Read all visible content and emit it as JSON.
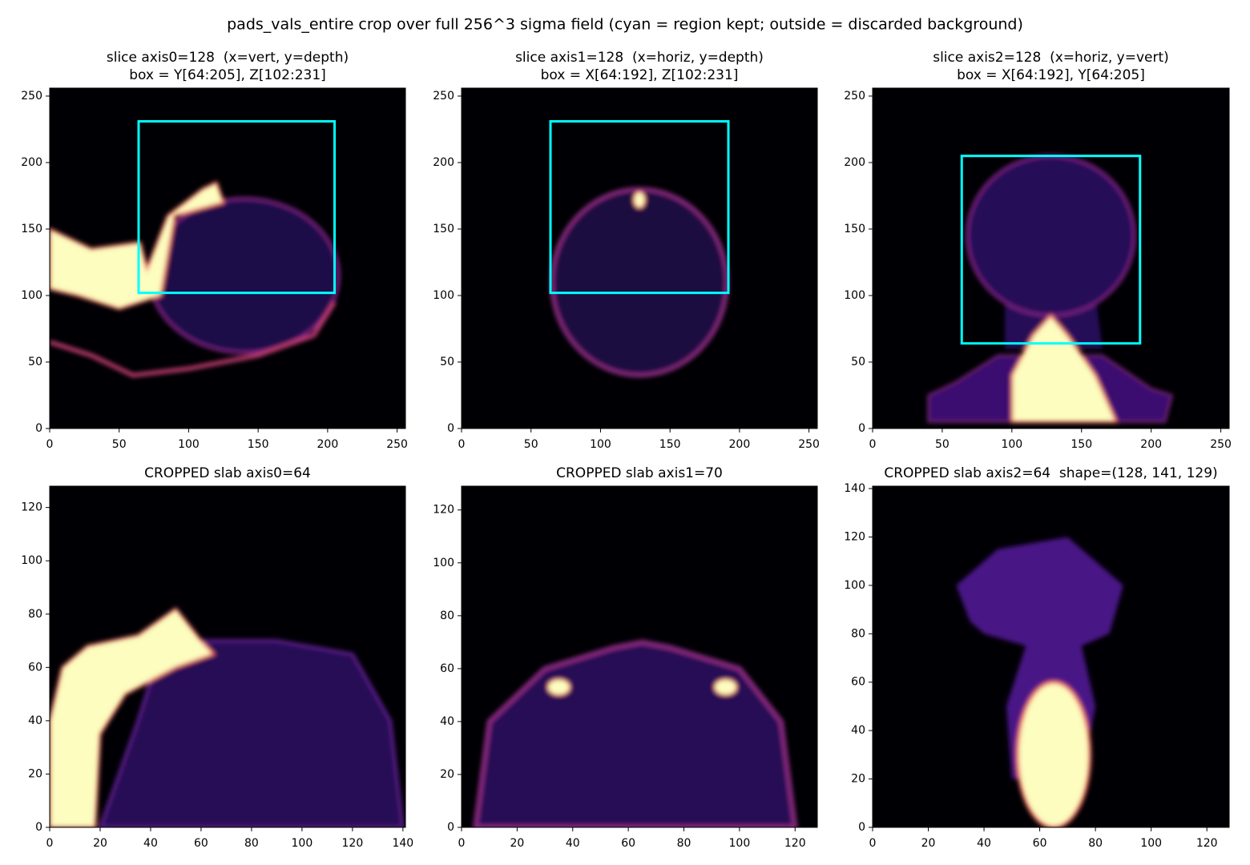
{
  "title": "pads_vals_entire crop over full 256^3 sigma field (cyan = region kept; outside = discarded background)",
  "chart_data": [
    {
      "type": "image",
      "title": "slice axis0=128  (x=vert, y=depth)",
      "subtitle": "box = Y[64:205], Z[102:231]",
      "xlim": [
        0,
        256
      ],
      "ylim": [
        0,
        256
      ],
      "xticks": [
        0,
        50,
        100,
        150,
        200,
        250
      ],
      "yticks": [
        0,
        50,
        100,
        150,
        200,
        250
      ],
      "box_x": [
        64,
        205
      ],
      "box_y": [
        102,
        231
      ],
      "box_color": "#00ffff"
    },
    {
      "type": "image",
      "title": "slice axis1=128  (x=horiz, y=depth)",
      "subtitle": "box = X[64:192], Z[102:231]",
      "xlim": [
        0,
        256
      ],
      "ylim": [
        0,
        256
      ],
      "xticks": [
        0,
        50,
        100,
        150,
        200,
        250
      ],
      "yticks": [
        0,
        50,
        100,
        150,
        200,
        250
      ],
      "box_x": [
        64,
        192
      ],
      "box_y": [
        102,
        231
      ],
      "box_color": "#00ffff"
    },
    {
      "type": "image",
      "title": "slice axis2=128  (x=horiz, y=vert)",
      "subtitle": "box = X[64:192], Y[64:205]",
      "xlim": [
        0,
        256
      ],
      "ylim": [
        0,
        256
      ],
      "xticks": [
        0,
        50,
        100,
        150,
        200,
        250
      ],
      "yticks": [
        0,
        50,
        100,
        150,
        200,
        250
      ],
      "box_x": [
        64,
        192
      ],
      "box_y": [
        64,
        205
      ],
      "box_color": "#00ffff"
    },
    {
      "type": "image",
      "title": "CROPPED slab axis0=64",
      "xlim": [
        0,
        141
      ],
      "ylim": [
        0,
        128
      ],
      "xticks": [
        0,
        20,
        40,
        60,
        80,
        100,
        120,
        140
      ],
      "yticks": [
        0,
        20,
        40,
        60,
        80,
        100,
        120
      ]
    },
    {
      "type": "image",
      "title": "CROPPED slab axis1=70",
      "xlim": [
        0,
        128
      ],
      "ylim": [
        0,
        129
      ],
      "xticks": [
        0,
        20,
        40,
        60,
        80,
        100,
        120
      ],
      "yticks": [
        0,
        20,
        40,
        60,
        80,
        100,
        120
      ]
    },
    {
      "type": "image",
      "title": "CROPPED slab axis2=64  shape=(128, 141, 129)",
      "xlim": [
        0,
        128
      ],
      "ylim": [
        0,
        141
      ],
      "xticks": [
        0,
        20,
        40,
        60,
        80,
        100,
        120
      ],
      "yticks": [
        0,
        20,
        40,
        60,
        80,
        100,
        120,
        140
      ]
    }
  ]
}
